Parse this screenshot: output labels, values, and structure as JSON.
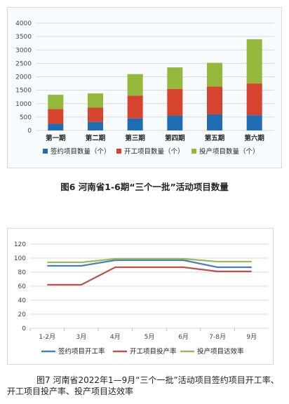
{
  "chart_data": [
    {
      "type": "bar",
      "stacked": true,
      "categories": [
        "第一期",
        "第二期",
        "第三期",
        "第四期",
        "第五期",
        "第六期"
      ],
      "series": [
        {
          "name": "签约项目数量（个）",
          "color": "#1f6eb4",
          "values": [
            250,
            320,
            450,
            550,
            600,
            570
          ]
        },
        {
          "name": "开工项目数量（个）",
          "color": "#d6432e",
          "values": [
            550,
            530,
            850,
            1000,
            1040,
            1180
          ]
        },
        {
          "name": "投产项目数量（个）",
          "color": "#93b83c",
          "values": [
            530,
            530,
            800,
            800,
            880,
            1650
          ]
        }
      ],
      "ylim": [
        0,
        4000
      ],
      "yticks": [
        0,
        500,
        1000,
        1500,
        2000,
        2500,
        3000,
        3500,
        4000
      ],
      "grid": true,
      "legend": "bottom",
      "title": "图6 河南省1-6期“三个一批”活动项目数量"
    },
    {
      "type": "line",
      "categories": [
        "1-2月",
        "3月",
        "4月",
        "5月",
        "6月",
        "7-8月",
        "9月"
      ],
      "series": [
        {
          "name": "签约项目开工率",
          "color": "#4a7ebb",
          "values": [
            89,
            89,
            97,
            97,
            97,
            87,
            87
          ]
        },
        {
          "name": "开工项目投产率",
          "color": "#c0504d",
          "values": [
            62,
            62,
            87,
            87,
            87,
            81,
            81
          ]
        },
        {
          "name": "投产项目达效率",
          "color": "#9bbb59",
          "values": [
            94,
            94,
            99,
            99,
            99,
            95,
            95
          ]
        }
      ],
      "ylim": [
        0,
        120
      ],
      "yticks": [
        0,
        20,
        40,
        60,
        80,
        100,
        120
      ],
      "grid": true,
      "legend": "bottom",
      "title": "图7 河南省2022年1—9月“三个一批”活动项目签约项目开工率、开工项目投产率、投产项目达效率"
    }
  ]
}
